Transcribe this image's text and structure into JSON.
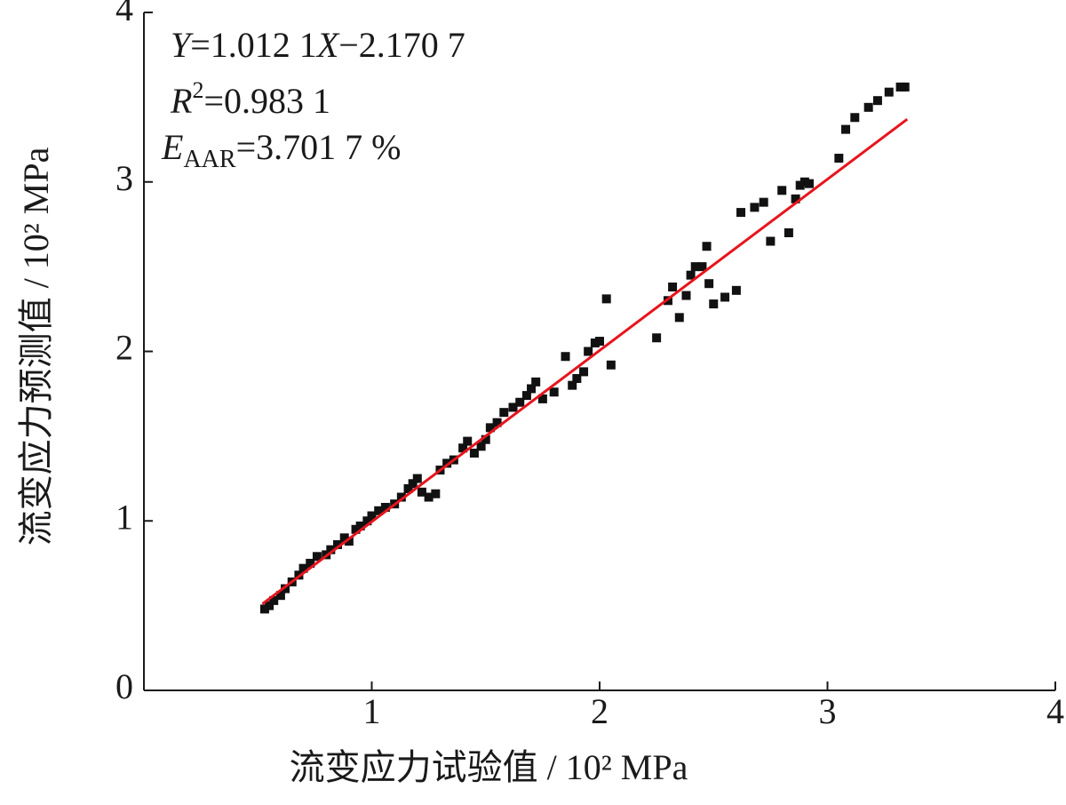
{
  "chart_data": {
    "type": "scatter",
    "x_label": "流变应力试验值 / 10² MPa",
    "y_label": "流变应力预测值 / 10² MPa",
    "annotations": [
      [
        "Y",
        "=1.012 1",
        "X",
        "−2.170 7"
      ],
      [
        "R",
        "2",
        "=0.983 1"
      ],
      [
        "E",
        "AAR",
        "=3.701 7 %"
      ]
    ],
    "xlim": [
      0,
      4
    ],
    "ylim": [
      0,
      4
    ],
    "xticks": [
      1,
      2,
      3,
      4
    ],
    "yticks": [
      0,
      1,
      2,
      3,
      4
    ],
    "series": [
      {
        "type": "scatter",
        "color": "#111111",
        "x": [
          0.53,
          0.55,
          0.57,
          0.6,
          0.62,
          0.65,
          0.68,
          0.7,
          0.73,
          0.76,
          0.8,
          0.82,
          0.85,
          0.88,
          0.9,
          0.93,
          0.95,
          0.98,
          1.0,
          1.03,
          1.06,
          1.1,
          1.13,
          1.16,
          1.18,
          1.2,
          1.22,
          1.25,
          1.28,
          1.3,
          1.33,
          1.36,
          1.4,
          1.42,
          1.45,
          1.48,
          1.5,
          1.52,
          1.55,
          1.58,
          1.62,
          1.65,
          1.68,
          1.7,
          1.72,
          1.75,
          1.8,
          1.85,
          1.88,
          1.9,
          1.93,
          1.95,
          1.98,
          2.0,
          2.03,
          2.05,
          2.25,
          2.3,
          2.32,
          2.35,
          2.38,
          2.4,
          2.42,
          2.45,
          2.48,
          2.47,
          2.5,
          2.55,
          2.6,
          2.62,
          2.68,
          2.72,
          2.75,
          2.8,
          2.83,
          2.86,
          2.88,
          2.9,
          2.92,
          3.05,
          3.08,
          3.12,
          3.18,
          3.22,
          3.27,
          3.32,
          3.34
        ],
        "values": [
          0.48,
          0.5,
          0.53,
          0.56,
          0.6,
          0.64,
          0.68,
          0.72,
          0.75,
          0.79,
          0.8,
          0.83,
          0.86,
          0.9,
          0.88,
          0.95,
          0.97,
          1.0,
          1.03,
          1.06,
          1.08,
          1.1,
          1.14,
          1.19,
          1.22,
          1.25,
          1.17,
          1.14,
          1.16,
          1.3,
          1.34,
          1.36,
          1.43,
          1.47,
          1.4,
          1.44,
          1.48,
          1.55,
          1.58,
          1.64,
          1.67,
          1.7,
          1.74,
          1.78,
          1.82,
          1.72,
          1.76,
          1.97,
          1.8,
          1.84,
          1.88,
          2.0,
          2.05,
          2.06,
          2.31,
          1.92,
          2.08,
          2.3,
          2.38,
          2.2,
          2.33,
          2.45,
          2.5,
          2.5,
          2.4,
          2.62,
          2.28,
          2.32,
          2.36,
          2.82,
          2.85,
          2.88,
          2.65,
          2.95,
          2.7,
          2.9,
          2.98,
          3.0,
          2.99,
          3.14,
          3.31,
          3.38,
          3.44,
          3.48,
          3.53,
          3.56,
          3.56
        ]
      },
      {
        "type": "line",
        "color": "#e8141c",
        "x": [
          0.52,
          3.35
        ],
        "values": [
          0.51,
          3.37
        ]
      }
    ]
  }
}
